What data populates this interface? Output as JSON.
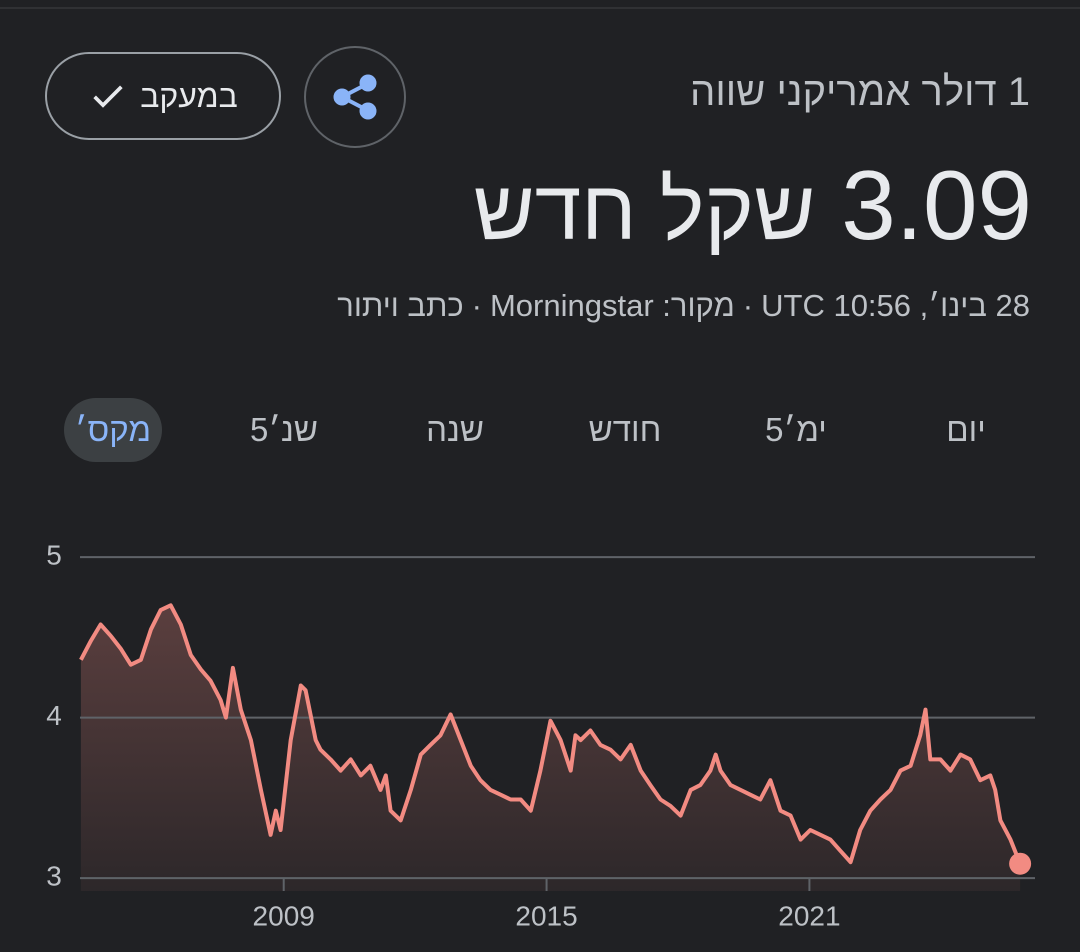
{
  "header": {
    "title": "1 דולר אמריקני שווה",
    "price": "3.09",
    "currency": "שקל חדש",
    "timestamp": "28 בינו׳, UTC 10:56",
    "separator": "·",
    "source": "מקור: Morningstar",
    "disclaimer": "כתב ויתור"
  },
  "buttons": {
    "follow": "במעקב"
  },
  "tabs": {
    "items": [
      "יום",
      "5ימ׳",
      "חודש",
      "שנה",
      "5שנ׳",
      "מקס׳"
    ],
    "selected_index": 5
  },
  "chart_data": {
    "type": "line",
    "color": "#f28b82",
    "xlim": [
      2004.35,
      2025.83
    ],
    "xticks": [
      2009,
      2015,
      2021
    ],
    "ylim": [
      2.92,
      5.2
    ],
    "yticks": [
      3,
      4,
      5
    ],
    "grid": true,
    "x": [
      2004.37,
      2004.6,
      2004.82,
      2005.05,
      2005.28,
      2005.51,
      2005.74,
      2005.97,
      2006.19,
      2006.42,
      2006.65,
      2006.88,
      2007.11,
      2007.33,
      2007.56,
      2007.68,
      2007.84,
      2008.02,
      2008.25,
      2008.48,
      2008.7,
      2008.82,
      2008.93,
      2009.16,
      2009.39,
      2009.5,
      2009.73,
      2009.84,
      2010.07,
      2010.3,
      2010.53,
      2010.76,
      2010.98,
      2011.21,
      2011.33,
      2011.44,
      2011.67,
      2011.9,
      2012.13,
      2012.35,
      2012.58,
      2012.81,
      2013.04,
      2013.27,
      2013.49,
      2013.72,
      2013.95,
      2014.18,
      2014.41,
      2014.64,
      2014.86,
      2015.09,
      2015.32,
      2015.55,
      2015.66,
      2015.78,
      2016.0,
      2016.23,
      2016.46,
      2016.69,
      2016.92,
      2017.15,
      2017.37,
      2017.6,
      2017.83,
      2018.06,
      2018.29,
      2018.51,
      2018.74,
      2018.86,
      2018.97,
      2019.2,
      2019.43,
      2019.65,
      2019.88,
      2020.11,
      2020.34,
      2020.57,
      2020.8,
      2021.02,
      2021.25,
      2021.48,
      2021.71,
      2021.94,
      2022.16,
      2022.39,
      2022.62,
      2022.85,
      2023.08,
      2023.31,
      2023.53,
      2023.65,
      2023.76,
      2023.99,
      2024.22,
      2024.45,
      2024.67,
      2024.9,
      2025.13,
      2025.24,
      2025.36,
      2025.59,
      2025.81
    ],
    "values": [
      4.36,
      4.48,
      4.58,
      4.51,
      4.43,
      4.33,
      4.36,
      4.55,
      4.67,
      4.7,
      4.58,
      4.39,
      4.3,
      4.23,
      4.11,
      4.0,
      4.31,
      4.05,
      3.86,
      3.55,
      3.27,
      3.42,
      3.3,
      3.86,
      4.2,
      4.17,
      3.86,
      3.8,
      3.74,
      3.67,
      3.74,
      3.64,
      3.7,
      3.55,
      3.64,
      3.42,
      3.36,
      3.55,
      3.77,
      3.83,
      3.89,
      4.02,
      3.86,
      3.7,
      3.61,
      3.55,
      3.52,
      3.49,
      3.49,
      3.42,
      3.67,
      3.98,
      3.86,
      3.67,
      3.89,
      3.86,
      3.92,
      3.83,
      3.8,
      3.74,
      3.83,
      3.67,
      3.58,
      3.49,
      3.45,
      3.39,
      3.55,
      3.58,
      3.67,
      3.77,
      3.67,
      3.58,
      3.55,
      3.52,
      3.49,
      3.61,
      3.42,
      3.39,
      3.24,
      3.3,
      3.27,
      3.24,
      3.17,
      3.1,
      3.3,
      3.42,
      3.49,
      3.55,
      3.67,
      3.7,
      3.89,
      4.05,
      3.74,
      3.74,
      3.67,
      3.77,
      3.74,
      3.61,
      3.64,
      3.55,
      3.36,
      3.24,
      3.09
    ]
  }
}
